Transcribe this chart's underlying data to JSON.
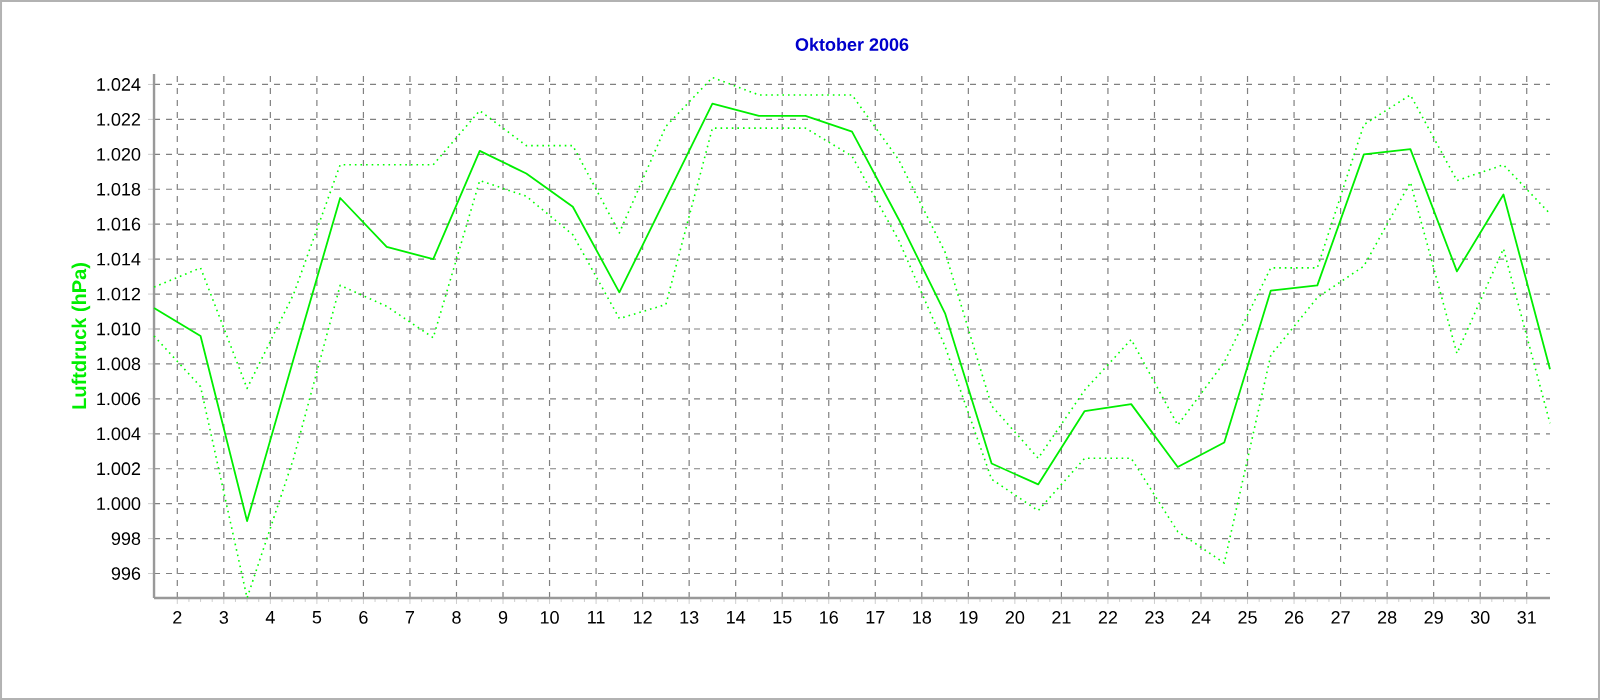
{
  "chart_data": {
    "type": "line",
    "title": "Oktober 2006",
    "ylabel": "Luftdruck (hPa)",
    "x": [
      1.5,
      2.5,
      3.5,
      4.5,
      5.5,
      6.5,
      7.5,
      8.5,
      9.5,
      10.5,
      11.5,
      12.5,
      13.5,
      14.5,
      15.5,
      16.5,
      17.5,
      18.5,
      19.5,
      20.5,
      21.5,
      22.5,
      23.5,
      24.5,
      25.5,
      26.5,
      27.5,
      28.5,
      29.5,
      30.5,
      31.5
    ],
    "xlim": [
      1.5,
      31.5
    ],
    "xticks": [
      2,
      3,
      4,
      5,
      6,
      7,
      8,
      9,
      10,
      11,
      12,
      13,
      14,
      15,
      16,
      17,
      18,
      19,
      20,
      21,
      22,
      23,
      24,
      25,
      26,
      27,
      28,
      29,
      30,
      31
    ],
    "ylim": [
      994.6,
      1024.6
    ],
    "yticks": [
      {
        "value": 996,
        "label": "996"
      },
      {
        "value": 998,
        "label": "998"
      },
      {
        "value": 1000,
        "label": "1.000"
      },
      {
        "value": 1002,
        "label": "1.002"
      },
      {
        "value": 1004,
        "label": "1.004"
      },
      {
        "value": 1006,
        "label": "1.006"
      },
      {
        "value": 1008,
        "label": "1.008"
      },
      {
        "value": 1010,
        "label": "1.010"
      },
      {
        "value": 1012,
        "label": "1.012"
      },
      {
        "value": 1014,
        "label": "1.014"
      },
      {
        "value": 1016,
        "label": "1.016"
      },
      {
        "value": 1018,
        "label": "1.018"
      },
      {
        "value": 1020,
        "label": "1.020"
      },
      {
        "value": 1022,
        "label": "1.022"
      },
      {
        "value": 1024,
        "label": "1.024"
      }
    ],
    "grid": true,
    "series": [
      {
        "color": "#00ee00",
        "line_style": "solid",
        "values": [
          1011.2,
          1009.6,
          999.0,
          1008.3,
          1017.5,
          1014.7,
          1014.0,
          1020.2,
          1018.9,
          1017.0,
          1012.1,
          1017.5,
          1022.9,
          1022.2,
          1022.2,
          1021.3,
          1016.3,
          1010.9,
          1002.3,
          1001.1,
          1005.3,
          1005.7,
          1002.1,
          1003.5,
          1012.2,
          1012.5,
          1020.0,
          1020.3,
          1013.3,
          1017.7,
          1007.7
        ]
      },
      {
        "color": "#00ff00",
        "line_style": "dotted",
        "values": [
          1012.4,
          1013.5,
          1006.6,
          1012.0,
          1019.4,
          1019.4,
          1019.4,
          1022.5,
          1020.5,
          1020.5,
          1015.5,
          1021.6,
          1024.4,
          1023.4,
          1023.4,
          1023.4,
          1019.7,
          1014.4,
          1005.6,
          1002.6,
          1006.5,
          1009.4,
          1004.5,
          1008.1,
          1013.5,
          1013.5,
          1021.7,
          1023.4,
          1018.5,
          1019.4,
          1016.6
        ]
      },
      {
        "color": "#00ff00",
        "line_style": "dotted",
        "values": [
          1009.6,
          1006.7,
          994.6,
          1002.6,
          1012.5,
          1011.3,
          1009.5,
          1018.5,
          1017.6,
          1015.4,
          1010.6,
          1011.4,
          1021.5,
          1021.5,
          1021.5,
          1019.9,
          1015.1,
          1009.0,
          1001.4,
          999.6,
          1002.6,
          1002.6,
          998.4,
          996.6,
          1008.5,
          1011.8,
          1013.6,
          1018.4,
          1008.6,
          1014.6,
          1004.6
        ]
      }
    ]
  }
}
